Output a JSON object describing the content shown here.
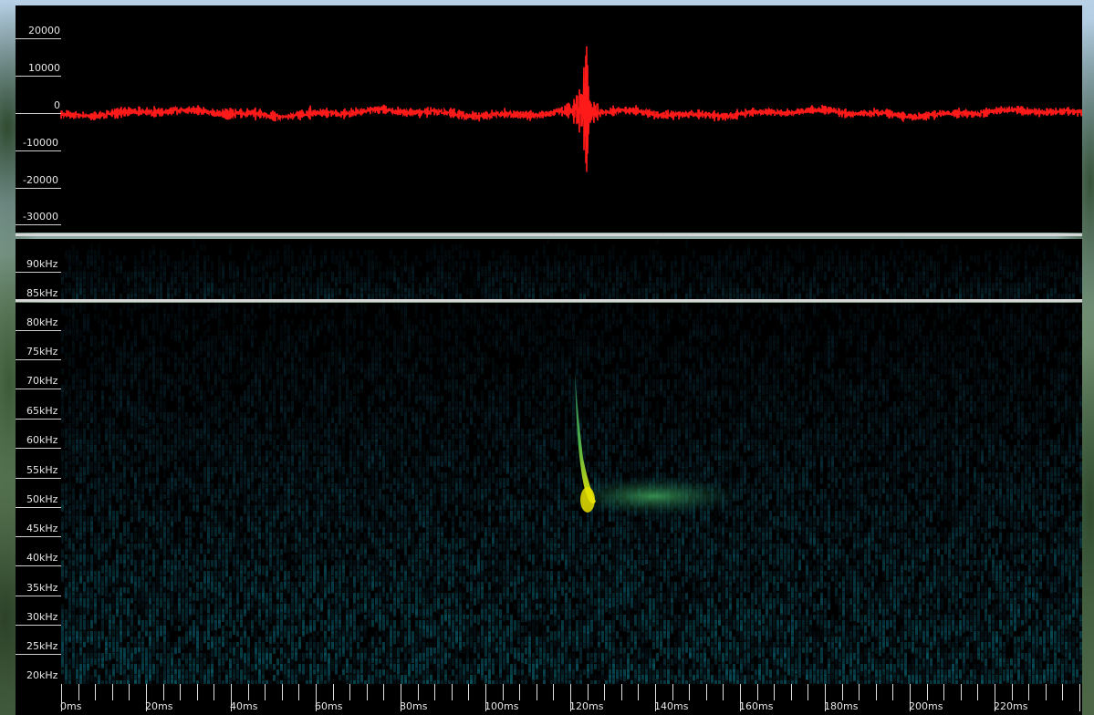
{
  "waveform": {
    "color": "#ff1a1a",
    "y_labels": [
      "20000",
      "10000",
      "0",
      "-10000",
      "-20000",
      "-30000"
    ]
  },
  "spectrogram": {
    "upper_labels": [
      "90kHz",
      "85kHz"
    ],
    "freq_labels": [
      "80kHz",
      "75kHz",
      "70kHz",
      "65kHz",
      "60kHz",
      "55kHz",
      "50kHz",
      "45kHz",
      "40kHz",
      "35kHz",
      "30kHz",
      "25kHz",
      "20kHz"
    ],
    "call_color": "#e8e000"
  },
  "time_axis": {
    "labels": [
      "0ms",
      "20ms",
      "40ms",
      "60ms",
      "80ms",
      "100ms",
      "120ms",
      "140ms",
      "160ms",
      "180ms",
      "200ms",
      "220ms"
    ]
  }
}
